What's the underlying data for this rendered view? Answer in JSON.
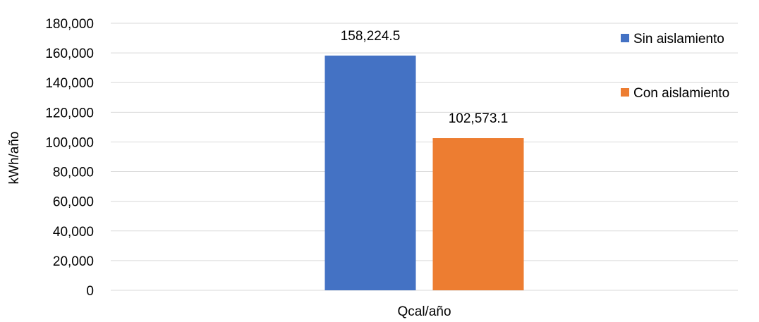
{
  "chart_data": {
    "type": "bar",
    "categories": [
      "Qcal/año"
    ],
    "series": [
      {
        "name": "Sin aislamiento",
        "values": [
          158224.5
        ],
        "label": "158,224.5",
        "color": "#4472C4"
      },
      {
        "name": "Con aislamiento",
        "values": [
          102573.1
        ],
        "label": "102,573.1",
        "color": "#ED7D31"
      }
    ],
    "xlabel": "",
    "ylabel": "kWh/año",
    "ylim": [
      0,
      180000
    ],
    "yticks": [
      0,
      20000,
      40000,
      60000,
      80000,
      100000,
      120000,
      140000,
      160000,
      180000
    ],
    "ytick_labels": [
      "0",
      "20,000",
      "40,000",
      "60,000",
      "80,000",
      "100,000",
      "120,000",
      "140,000",
      "160,000",
      "180,000"
    ],
    "grid": true,
    "legend": "top-right",
    "gridline_color": "#D9D9D9"
  }
}
